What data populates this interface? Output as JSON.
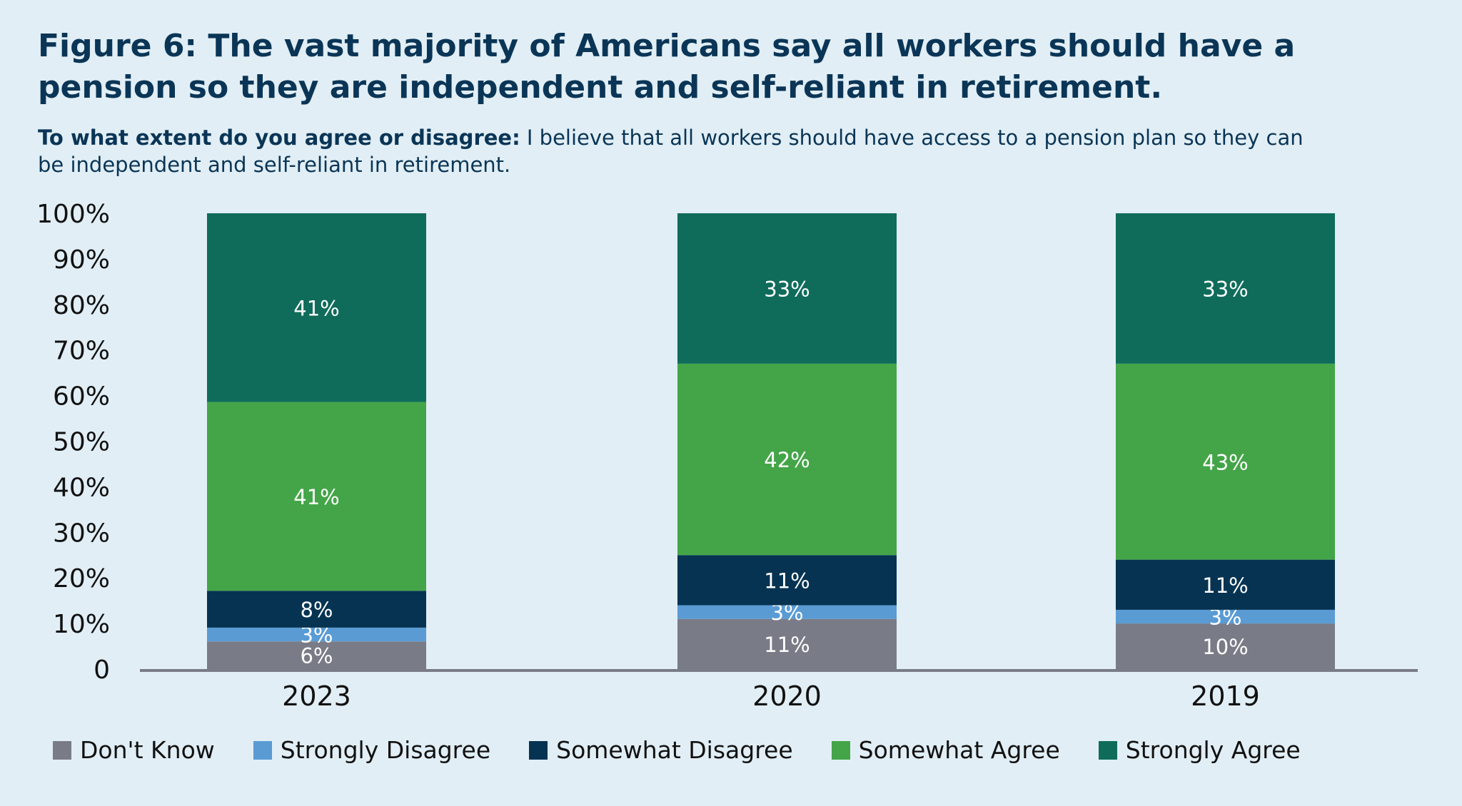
{
  "title": {
    "lead": "Figure 6:",
    "text": "The vast majority of Americans say all workers should have a pension so they are independent and self-reliant in retirement."
  },
  "subtitle": {
    "lead": "To what extent do you agree or disagree:",
    "text": "I believe that all workers should have access to a pension plan so they can be independent and self-reliant in retirement."
  },
  "chart_data": {
    "type": "bar",
    "stacked": true,
    "categories": [
      "2023",
      "2020",
      "2019"
    ],
    "series": [
      {
        "name": "Don't Know",
        "color": "#797c87",
        "values": [
          6,
          11,
          10
        ]
      },
      {
        "name": "Strongly Disagree",
        "color": "#5a9bd4",
        "values": [
          3,
          3,
          3
        ]
      },
      {
        "name": "Somewhat Disagree",
        "color": "#063352",
        "values": [
          8,
          11,
          11
        ]
      },
      {
        "name": "Somewhat Agree",
        "color": "#44a548",
        "values": [
          41,
          42,
          43
        ]
      },
      {
        "name": "Strongly Agree",
        "color": "#0f6c5a",
        "values": [
          41,
          33,
          33
        ]
      }
    ],
    "ylim": [
      0,
      100
    ],
    "yticks": [
      "0",
      "10%",
      "20%",
      "30%",
      "40%",
      "50%",
      "60%",
      "70%",
      "80%",
      "90%",
      "100%"
    ],
    "data_label_suffix": "%",
    "grid": false,
    "legend": "bottom",
    "xlabel": "",
    "ylabel": ""
  },
  "colors": {
    "background": "#e1eef5",
    "title": "#0a3556",
    "axis": "#797c87"
  }
}
